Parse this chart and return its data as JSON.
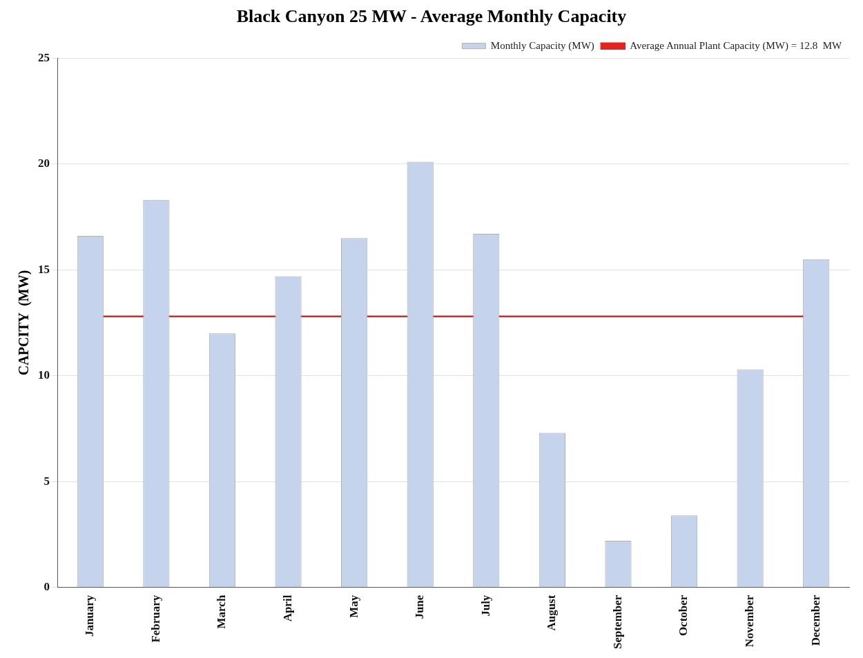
{
  "chart_data": {
    "type": "bar",
    "title": "Black Canyon 25 MW - Average Monthly Capacity",
    "ylabel": "CAPCITY  (MW)",
    "categories": [
      "January",
      "February",
      "March",
      "April",
      "May",
      "June",
      "July",
      "August",
      "September",
      "October",
      "November",
      "December"
    ],
    "series": [
      {
        "name": "Monthly Capacity (MW)",
        "color": "#c5d3ec",
        "values": [
          16.6,
          18.3,
          12.0,
          14.7,
          16.5,
          20.1,
          16.7,
          7.3,
          2.2,
          3.4,
          10.3,
          15.5
        ]
      }
    ],
    "ref_lines": [
      {
        "axis": "y",
        "value": 12.8,
        "label": "Average Annual Plant Capacity (MW) = 12.8  MW",
        "color": "#e8201e"
      }
    ],
    "ylim": [
      0,
      25
    ],
    "yticks": [
      0,
      5,
      10,
      15,
      20,
      25
    ],
    "grid": "y",
    "legend": "top right"
  }
}
